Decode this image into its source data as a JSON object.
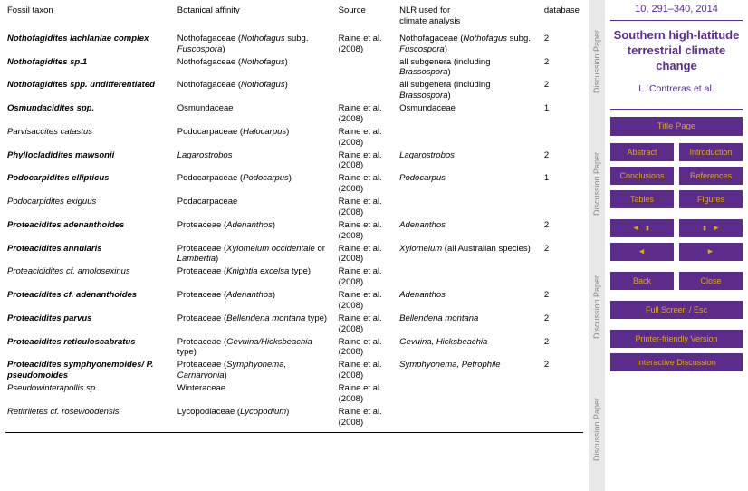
{
  "columns": [
    "Fossil taxon",
    "Botanical affinity",
    "Source",
    "NLR used for climate analysis",
    "database"
  ],
  "rows": [
    {
      "taxon": "Nothofagidites lachlaniae complex",
      "taxonBold": true,
      "affinity": "Nothofagaceae (<i>Nothofagus</i> subg. <i>Fuscospora</i>)",
      "source": "Raine et al. (2008)",
      "nlr": "Nothofagaceae (<i>Nothofagus</i> subg. <i>Fuscospora</i>)",
      "db": "2"
    },
    {
      "taxon": "Nothofagidites <span class=\"bold\">sp.1</span>",
      "taxonBold": true,
      "affinity": "Nothofagaceae (<i>Nothofagus</i>)",
      "source": "",
      "nlr": "all subgenera (including <i>Brassospora</i>)",
      "db": "2"
    },
    {
      "taxon": "Nothofagidites spp. undifferentiated",
      "taxonBold": true,
      "affinity": "Nothofagaceae (<i>Nothofagus</i>)",
      "source": "",
      "nlr": "all subgenera (including <i>Brassospora</i>)",
      "db": "2"
    },
    {
      "taxon": "Osmundacidites <span class=\"bold\">spp.</span>",
      "taxonBold": true,
      "affinity": "Osmundaceae",
      "source": "Raine et al. (2008)",
      "nlr": "Osmundaceae",
      "db": "1"
    },
    {
      "taxon": "Parvisaccites catastus",
      "taxonBold": false,
      "taxonItalic": true,
      "affinity": "Podocarpaceae (<i>Halocarpus</i>)",
      "source": "Raine et al. (2008)",
      "nlr": "",
      "db": ""
    },
    {
      "taxon": "Phyllocladidites mawsonii",
      "taxonBold": true,
      "affinity": "<i>Lagarostrobos</i>",
      "source": "Raine et al. (2008)",
      "nlr": "<i>Lagarostrobos</i>",
      "db": "2"
    },
    {
      "taxon": "Podocarpidites ellipticus",
      "taxonBold": true,
      "affinity": "Podocarpaceae (<i>Podocarpus</i>)",
      "source": "Raine et al. (2008)",
      "nlr": "<i>Podocarpus</i>",
      "db": "1"
    },
    {
      "taxon": "Podocarpidites exiguus",
      "taxonBold": false,
      "taxonItalic": true,
      "affinity": "Podacarpaceae",
      "source": "Raine et al. (2008)",
      "nlr": "",
      "db": ""
    },
    {
      "taxon": "Proteacidites adenanthoides",
      "taxonBold": true,
      "affinity": "Proteaceae (<i>Adenanthos</i>)",
      "source": "Raine et al. (2008)",
      "nlr": "<i>Adenanthos</i>",
      "db": "2"
    },
    {
      "taxon": "Proteacidites annularis",
      "taxonBold": true,
      "affinity": "Proteaceae (<i>Xylomelum occidentale</i> or <i>Lambertia</i>)",
      "source": "Raine et al. (2008)",
      "nlr": " <i>Xylomelum</i> (all Australian species)",
      "db": "2"
    },
    {
      "taxon": "Proteacididites <span class=\"italic\">cf.</span> amolosexinus",
      "taxonBold": false,
      "taxonItalic": true,
      "affinity": "Proteaceae (<i>Knightia excelsa</i> type)",
      "source": "Raine et al. (2008)",
      "nlr": "",
      "db": ""
    },
    {
      "taxon": "Proteacidites <span class=\"bold\">cf.</span> adenanthoides",
      "taxonBold": true,
      "affinity": "Proteaceae (<i>Adenanthos</i>)",
      "source": "Raine et al. (2008)",
      "nlr": "<i>Adenanthos</i>",
      "db": "2"
    },
    {
      "taxon": "Proteacidites parvus",
      "taxonBold": true,
      "affinity": "Proteaceae (<i>Bellendena montana</i> type)",
      "source": "Raine et al. (2008)",
      "nlr": "<i>Bellendena montana</i>",
      "db": "2"
    },
    {
      "taxon": "Proteacidites reticuloscabratus",
      "taxonBold": true,
      "affinity": "Proteaceae (<i>Gevuina/Hicksbeachia</i> type)",
      "source": "Raine et al. (2008)",
      "nlr": "<i>Gevuina, Hicksbeachia</i>",
      "db": "2"
    },
    {
      "taxon": "Proteacidites symphyonemoides/ P. pseudomoides",
      "taxonBold": true,
      "affinity": "Proteaceae (<i>Symphyonema, Carnarvonia</i>)",
      "source": "Raine et al. (2008)",
      "nlr": "<i>Symphyonema, Petrophile</i>",
      "db": "2"
    },
    {
      "taxon": "Pseudowinterapollis sp.",
      "taxonBold": false,
      "taxonItalic": true,
      "affinity": "Winteraceae",
      "source": "Raine et al. (2008)",
      "nlr": "",
      "db": ""
    },
    {
      "taxon": "Retitriletes <span class=\"italic\">cf.</span> rosewoodensis",
      "taxonBold": false,
      "taxonItalic": true,
      "affinity": "Lycopodiaceae (<i>Lycopodium</i>)",
      "source": "Raine et al. (2008)",
      "nlr": "",
      "db": ""
    }
  ],
  "sidebar": {
    "journal": "10, 291–340, 2014",
    "title": "Southern high-latitude terrestrial climate change",
    "authors": "L. Contreras et al.",
    "titlePage": "Title Page",
    "abstract": "Abstract",
    "introduction": "Introduction",
    "conclusions": "Conclusions",
    "references": "References",
    "tables": "Tables",
    "figures": "Figures",
    "navFirst": "◀ ▮",
    "navLast": "▮ ▶",
    "navPrev": "◀",
    "navNext": "▶",
    "back": "Back",
    "close": "Close",
    "fullscreen": "Full Screen / Esc",
    "printer": "Printer-friendly Version",
    "discussion": "Interactive Discussion"
  },
  "spine": [
    "Discussion Paper",
    "Discussion Paper",
    "Discussion Paper",
    "Discussion Paper"
  ]
}
